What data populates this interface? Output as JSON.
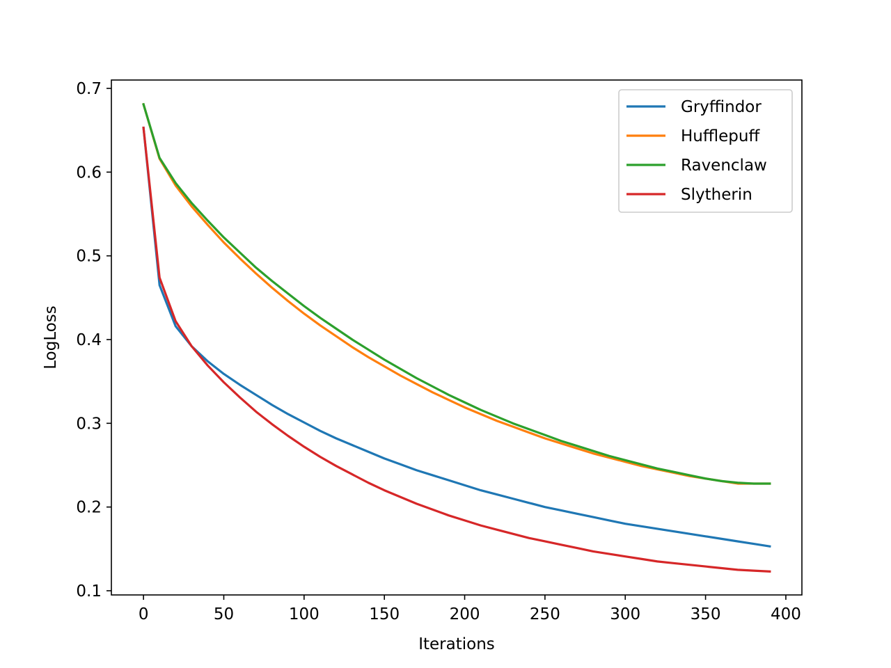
{
  "chart_data": {
    "type": "line",
    "title": "",
    "xlabel": "Iterations",
    "ylabel": "LogLoss",
    "xlim": [
      -20,
      410
    ],
    "ylim": [
      0.095,
      0.71
    ],
    "x_ticks": [
      0,
      50,
      100,
      150,
      200,
      250,
      300,
      350,
      400
    ],
    "y_ticks": [
      0.1,
      0.2,
      0.3,
      0.4,
      0.5,
      0.6,
      0.7
    ],
    "x_tick_labels": [
      "0",
      "50",
      "100",
      "150",
      "200",
      "250",
      "300",
      "350",
      "400"
    ],
    "y_tick_labels": [
      "0.1",
      "0.2",
      "0.3",
      "0.4",
      "0.5",
      "0.6",
      "0.7"
    ],
    "grid": false,
    "legend_position": "top-right",
    "x": [
      0,
      10,
      20,
      30,
      40,
      50,
      60,
      70,
      80,
      90,
      100,
      110,
      120,
      130,
      140,
      150,
      160,
      170,
      180,
      190,
      200,
      210,
      220,
      230,
      240,
      250,
      260,
      270,
      280,
      290,
      300,
      310,
      320,
      330,
      340,
      350,
      360,
      370,
      380,
      390
    ],
    "series": [
      {
        "name": "Gryffindor",
        "color": "#1f77b4",
        "values": [
          0.653,
          0.465,
          0.416,
          0.392,
          0.374,
          0.359,
          0.346,
          0.334,
          0.322,
          0.311,
          0.301,
          0.291,
          0.282,
          0.274,
          0.266,
          0.258,
          0.251,
          0.244,
          0.238,
          0.232,
          0.226,
          0.22,
          0.215,
          0.21,
          0.205,
          0.2,
          0.196,
          0.192,
          0.188,
          0.184,
          0.18,
          0.177,
          0.174,
          0.171,
          0.168,
          0.165,
          0.162,
          0.159,
          0.156,
          0.153
        ]
      },
      {
        "name": "Hufflepuff",
        "color": "#ff7f0e",
        "values": [
          0.681,
          0.616,
          0.584,
          0.559,
          0.537,
          0.516,
          0.497,
          0.479,
          0.462,
          0.446,
          0.431,
          0.417,
          0.404,
          0.391,
          0.379,
          0.368,
          0.357,
          0.347,
          0.337,
          0.328,
          0.319,
          0.311,
          0.303,
          0.296,
          0.289,
          0.282,
          0.276,
          0.27,
          0.264,
          0.259,
          0.254,
          0.249,
          0.245,
          0.241,
          0.237,
          0.234,
          0.231,
          0.228,
          0.228,
          0.228
        ]
      },
      {
        "name": "Ravenclaw",
        "color": "#2ca02c",
        "values": [
          0.681,
          0.617,
          0.587,
          0.563,
          0.542,
          0.522,
          0.504,
          0.486,
          0.47,
          0.455,
          0.44,
          0.426,
          0.413,
          0.4,
          0.388,
          0.376,
          0.365,
          0.354,
          0.344,
          0.334,
          0.325,
          0.316,
          0.308,
          0.3,
          0.293,
          0.286,
          0.279,
          0.273,
          0.267,
          0.261,
          0.256,
          0.251,
          0.246,
          0.242,
          0.238,
          0.234,
          0.231,
          0.229,
          0.228,
          0.228
        ]
      },
      {
        "name": "Slytherin",
        "color": "#d62728",
        "values": [
          0.653,
          0.474,
          0.422,
          0.392,
          0.369,
          0.349,
          0.331,
          0.314,
          0.299,
          0.285,
          0.272,
          0.26,
          0.249,
          0.239,
          0.229,
          0.22,
          0.212,
          0.204,
          0.197,
          0.19,
          0.184,
          0.178,
          0.173,
          0.168,
          0.163,
          0.159,
          0.155,
          0.151,
          0.147,
          0.144,
          0.141,
          0.138,
          0.135,
          0.133,
          0.131,
          0.129,
          0.127,
          0.125,
          0.124,
          0.123
        ]
      }
    ]
  }
}
